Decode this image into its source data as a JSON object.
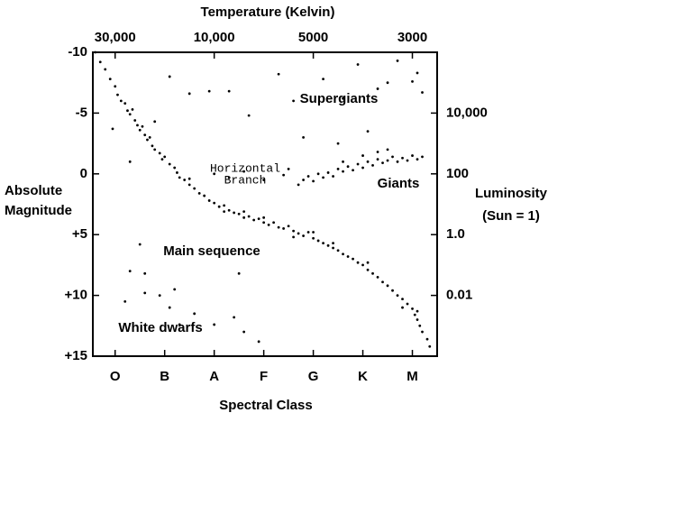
{
  "chart_data": {
    "type": "scatter",
    "title": "Temperature  (Kelvin)",
    "x_label": "Spectral Class",
    "y_label": [
      "Absolute",
      "Magnitude"
    ],
    "y2_label": [
      "Luminosity",
      "(Sun = 1)"
    ],
    "annotations": [
      "Supergiants",
      [
        "Horizontal",
        "Branch"
      ],
      "Giants",
      "Main sequence",
      "White dwarfs"
    ],
    "color": "#000000",
    "xlim": [
      -0.45,
      6.5
    ],
    "xticks": [
      {
        "value": 0,
        "label": "O"
      },
      {
        "value": 1,
        "label": "B"
      },
      {
        "value": 2,
        "label": "A"
      },
      {
        "value": 3,
        "label": "F"
      },
      {
        "value": 4,
        "label": "G"
      },
      {
        "value": 5,
        "label": "K"
      },
      {
        "value": 6,
        "label": "M"
      }
    ],
    "x2ticks": [
      {
        "value": 0,
        "label": "30,000"
      },
      {
        "value": 2,
        "label": "10,000"
      },
      {
        "value": 4,
        "label": "5000"
      },
      {
        "value": 6,
        "label": "3000"
      }
    ],
    "ylim": [
      -10,
      15
    ],
    "yticks": [
      -10,
      -5,
      0,
      {
        "value": 5,
        "label": "+5"
      },
      {
        "value": 10,
        "label": "+10"
      },
      {
        "value": 15,
        "label": "+15"
      }
    ],
    "y2_log": true,
    "y2lim": [
      1000000,
      0.0001
    ],
    "y2ticks": [
      {
        "value": 10000,
        "label": "10,000"
      },
      100,
      {
        "value": 1,
        "label": "1.0"
      },
      0.01
    ],
    "x": [
      -0.4,
      -0.3,
      -0.2,
      -0.1,
      0.0,
      0.05,
      0.12,
      0.2,
      0.25,
      0.3,
      0.35,
      0.4,
      0.45,
      0.5,
      0.55,
      0.6,
      0.65,
      0.7,
      0.75,
      0.8,
      0.9,
      0.95,
      1.0,
      1.1,
      1.2,
      1.25,
      1.3,
      1.4,
      1.5,
      1.6,
      1.7,
      1.8,
      1.9,
      2.0,
      2.1,
      2.2,
      2.3,
      2.4,
      2.5,
      2.6,
      2.7,
      2.8,
      2.9,
      3.0,
      3.1,
      3.2,
      3.3,
      3.4,
      3.5,
      3.6,
      3.7,
      3.8,
      3.9,
      4.0,
      4.1,
      4.2,
      4.3,
      4.4,
      4.5,
      4.6,
      4.7,
      4.8,
      4.9,
      5.0,
      5.1,
      5.2,
      5.3,
      5.4,
      5.5,
      5.6,
      5.7,
      5.8,
      5.9,
      6.0,
      6.05,
      6.1,
      6.15,
      6.2,
      6.3,
      6.35,
      1.5,
      2.2,
      3.0,
      3.6,
      4.4,
      5.1,
      5.8,
      6.1,
      4.0,
      2.6,
      3.7,
      3.8,
      3.9,
      4.0,
      4.1,
      4.2,
      4.3,
      4.4,
      4.5,
      4.6,
      4.7,
      4.8,
      4.9,
      5.0,
      5.1,
      5.2,
      5.3,
      5.4,
      5.5,
      5.6,
      5.7,
      5.8,
      5.9,
      6.0,
      6.1,
      6.2,
      5.3,
      5.0,
      4.6,
      5.5,
      2.0,
      2.3,
      2.6,
      3.4,
      3.5,
      3.0,
      1.1,
      1.5,
      1.9,
      2.3,
      2.7,
      3.3,
      3.6,
      4.2,
      4.6,
      4.9,
      5.3,
      5.5,
      5.7,
      6.0,
      6.2,
      6.1,
      3.8,
      4.5,
      5.1,
      0.8,
      0.3,
      -0.05,
      0.5,
      0.3,
      0.6,
      0.6,
      0.9,
      1.2,
      1.1,
      1.3,
      0.2,
      2.0,
      2.4,
      2.6,
      2.9,
      2.5,
      1.6
    ],
    "values": [
      -10,
      -9.2,
      -8.6,
      -7.8,
      -7.2,
      -6.5,
      -6.0,
      -5.8,
      -5.2,
      -4.9,
      -5.3,
      -4.4,
      -4.0,
      -3.6,
      -3.9,
      -3.2,
      -2.8,
      -3.0,
      -2.3,
      -2.0,
      -1.7,
      -1.2,
      -1.4,
      -0.8,
      -0.5,
      -0.1,
      0.3,
      0.5,
      0.9,
      1.2,
      1.6,
      1.8,
      2.2,
      2.4,
      2.7,
      2.6,
      3.0,
      3.2,
      3.3,
      3.6,
      3.5,
      3.8,
      3.7,
      4.0,
      4.2,
      4.0,
      4.4,
      4.5,
      4.3,
      4.7,
      4.9,
      5.1,
      4.8,
      5.3,
      5.5,
      5.7,
      5.9,
      6.1,
      6.3,
      6.6,
      6.8,
      7.0,
      7.3,
      7.5,
      7.9,
      8.2,
      8.5,
      8.9,
      9.2,
      9.6,
      10.0,
      10.3,
      10.7,
      11.1,
      11.6,
      12.0,
      12.5,
      13.0,
      13.6,
      14.2,
      0.4,
      3.1,
      3.6,
      5.2,
      5.7,
      7.3,
      11.0,
      11.3,
      4.8,
      3.1,
      0.9,
      0.5,
      0.2,
      0.6,
      0.0,
      0.3,
      -0.1,
      0.2,
      -0.4,
      -0.2,
      -0.6,
      -0.3,
      -0.8,
      -0.5,
      -1.0,
      -0.7,
      -1.2,
      -0.9,
      -1.1,
      -1.4,
      -1.0,
      -1.3,
      -1.1,
      -1.5,
      -1.2,
      -1.4,
      -1.8,
      -1.5,
      -1.0,
      -2.0,
      0.0,
      0.3,
      -0.2,
      0.1,
      -0.4,
      0.5,
      -8.0,
      -6.6,
      -6.8,
      -6.8,
      -4.8,
      -8.2,
      -6.0,
      -7.8,
      -6.2,
      -9.0,
      -7.0,
      -7.5,
      -9.3,
      -7.6,
      -6.7,
      -8.3,
      -3.0,
      -2.5,
      -3.5,
      -4.3,
      -1.0,
      -3.7,
      5.8,
      8.0,
      8.2,
      9.8,
      10.0,
      9.5,
      11.0,
      12.4,
      10.5,
      12.4,
      11.8,
      13.0,
      13.8,
      8.2,
      11.5
    ]
  }
}
